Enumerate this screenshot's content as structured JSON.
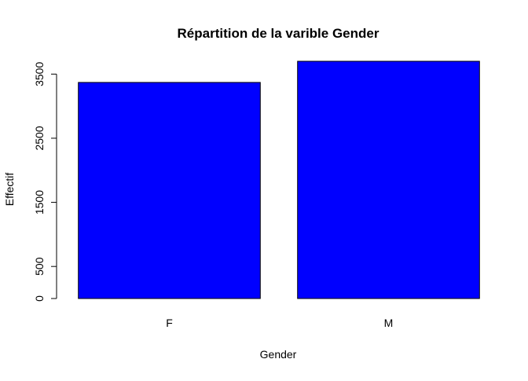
{
  "chart_data": {
    "type": "bar",
    "title": "Répartition de la varible Gender",
    "xlabel": "Gender",
    "ylabel": "Effectif",
    "categories": [
      "F",
      "M"
    ],
    "values": [
      3370,
      3700
    ],
    "ylim": [
      0,
      3700
    ],
    "yticks": [
      0,
      500,
      1500,
      2500,
      3500
    ],
    "bar_color": "#0000FF",
    "bar_border_color": "#000000",
    "grid": false,
    "legend": "none"
  }
}
